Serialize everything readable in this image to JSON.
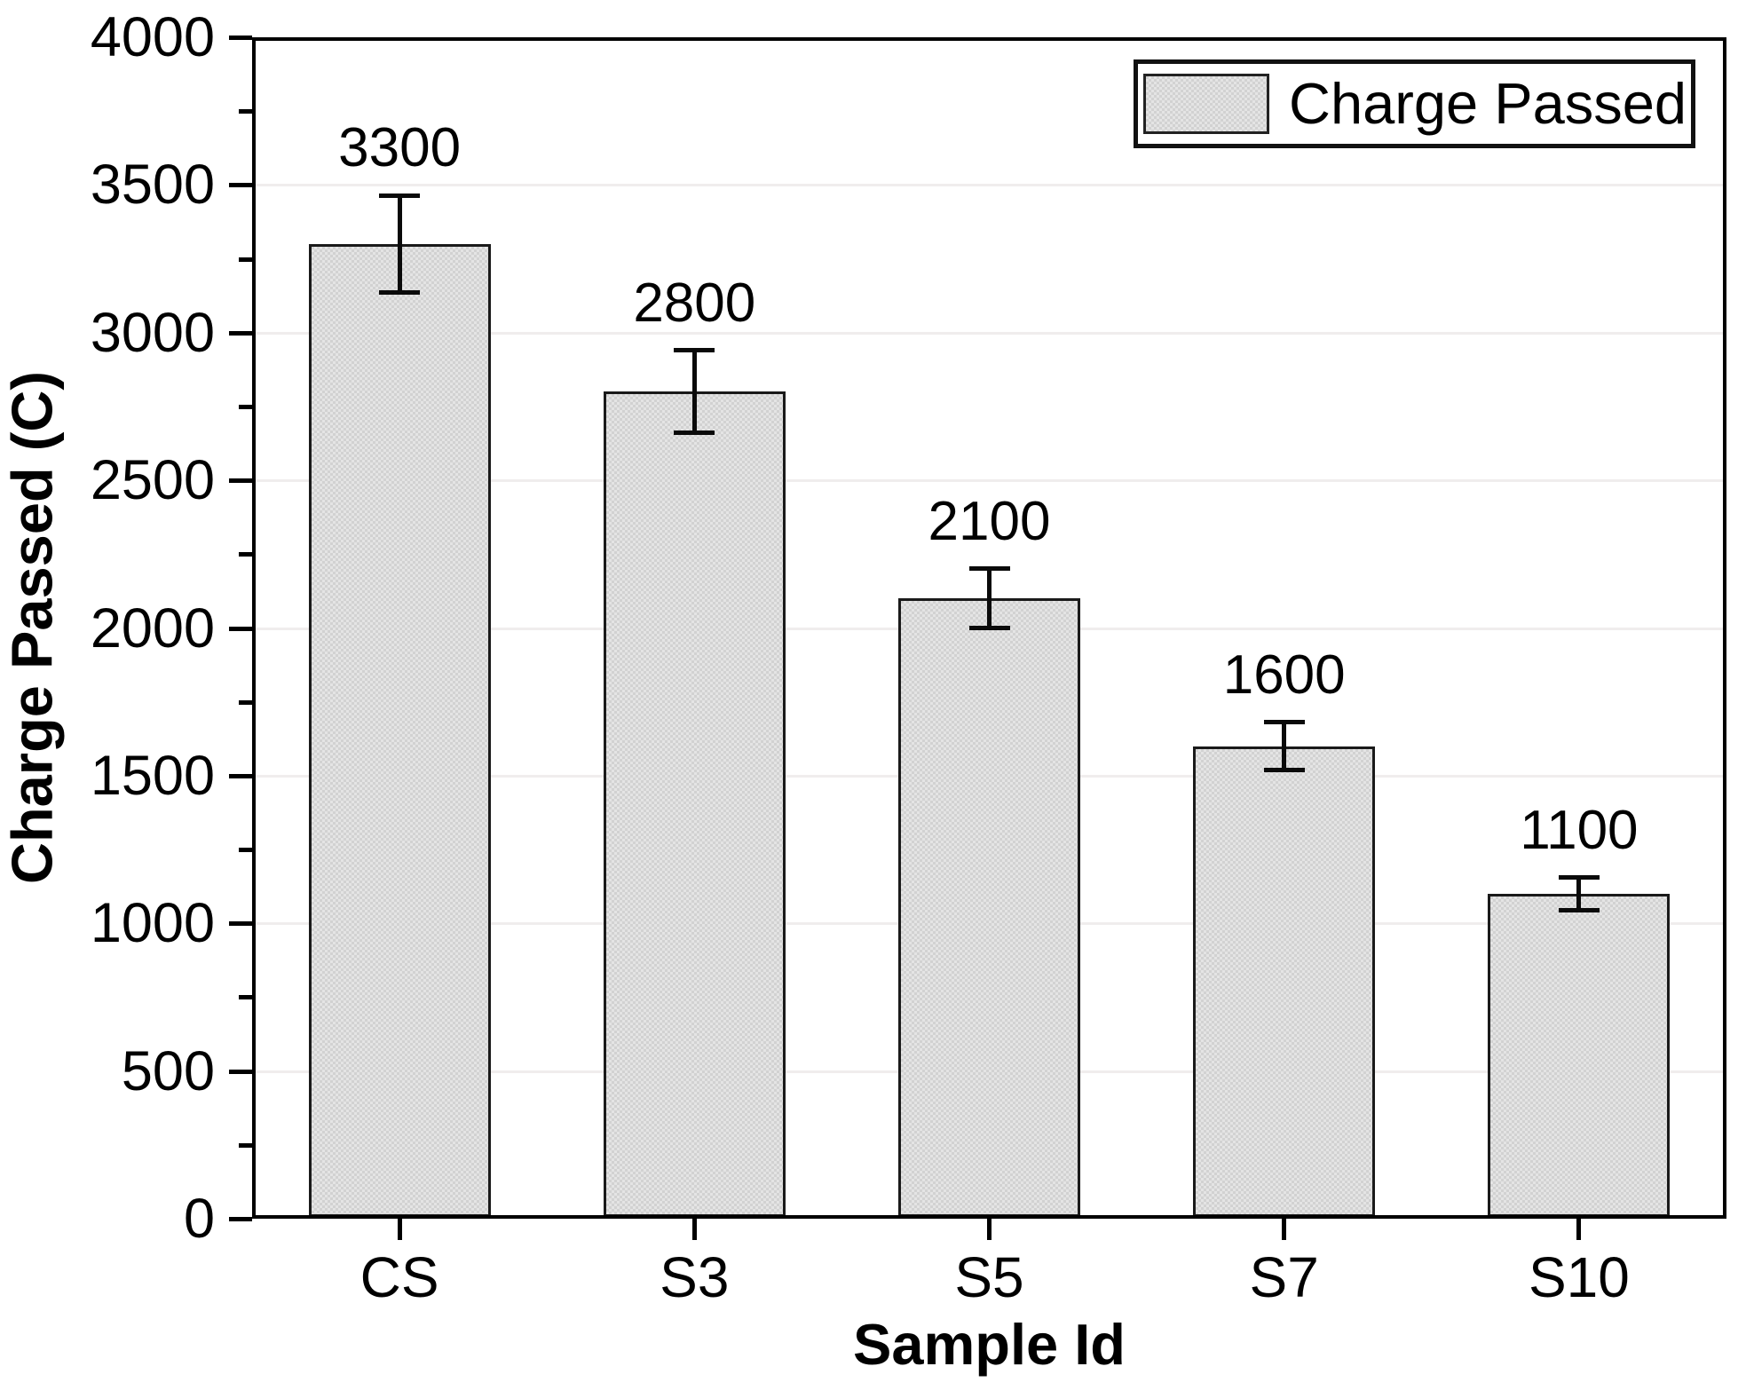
{
  "chart_data": {
    "type": "bar",
    "title": "",
    "xlabel": "Sample Id",
    "ylabel": "Charge Passed (C)",
    "categories": [
      "CS",
      "S3",
      "S5",
      "S7",
      "S10"
    ],
    "series": [
      {
        "name": "Charge Passed",
        "values": [
          3300,
          2800,
          2100,
          1600,
          1100
        ],
        "errors": [
          165,
          140,
          100,
          80,
          55
        ],
        "bar_labels": [
          "3300",
          "2800",
          "2100",
          "1600",
          "1100"
        ]
      }
    ],
    "y_axis": {
      "min": 0,
      "max": 4000,
      "major_step": 500,
      "minor_step": 250,
      "tick_labels": [
        "0",
        "500",
        "1000",
        "1500",
        "2000",
        "2500",
        "3000",
        "3500",
        "4000"
      ]
    },
    "legend": {
      "label": "Charge Passed",
      "position": "top-right"
    },
    "grid": "faint horizontal lines at major ticks",
    "colors": {
      "bar_fill": "#d8d8d8",
      "bar_pattern": "fine dotted checker",
      "bar_edge": "#1a1a1a",
      "error_bar": "#0a0a0a",
      "axis": "#000000",
      "gridline": "#f0eded",
      "text": "#000000",
      "background": "#ffffff",
      "legend_background": "#ffffff"
    }
  }
}
